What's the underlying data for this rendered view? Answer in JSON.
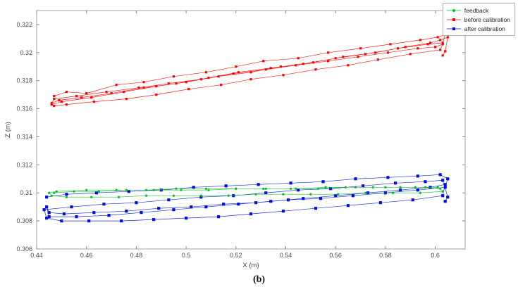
{
  "figure": {
    "caption": "(b)"
  },
  "chart_data": {
    "type": "line",
    "title": "",
    "xlabel": "X (m)",
    "ylabel": "Z (m)",
    "xlim": [
      0.44,
      0.612
    ],
    "ylim": [
      0.306,
      0.323
    ],
    "xticks": [
      0.44,
      0.46,
      0.48,
      0.5,
      0.52,
      0.54,
      0.56,
      0.58,
      0.6
    ],
    "yticks": [
      0.306,
      0.308,
      0.31,
      0.312,
      0.314,
      0.316,
      0.318,
      0.32,
      0.322
    ],
    "grid": false,
    "legend_position": "top-right",
    "series": [
      {
        "name": "feedback",
        "color": "#00bf26",
        "marker": "circle",
        "marker_size": 3.2,
        "points": [
          [
            0.447,
            0.31
          ],
          [
            0.455,
            0.3101
          ],
          [
            0.465,
            0.3101
          ],
          [
            0.476,
            0.3102
          ],
          [
            0.487,
            0.3102
          ],
          [
            0.498,
            0.3102
          ],
          [
            0.509,
            0.3102
          ],
          [
            0.52,
            0.3103
          ],
          [
            0.531,
            0.3103
          ],
          [
            0.542,
            0.3103
          ],
          [
            0.553,
            0.3103
          ],
          [
            0.564,
            0.3104
          ],
          [
            0.575,
            0.3104
          ],
          [
            0.586,
            0.3104
          ],
          [
            0.596,
            0.3104
          ],
          [
            0.602,
            0.3103
          ],
          [
            0.603,
            0.3101
          ],
          [
            0.594,
            0.31
          ],
          [
            0.583,
            0.31
          ],
          [
            0.572,
            0.31
          ],
          [
            0.561,
            0.3099
          ],
          [
            0.55,
            0.3099
          ],
          [
            0.539,
            0.3099
          ],
          [
            0.528,
            0.3099
          ],
          [
            0.517,
            0.3098
          ],
          [
            0.506,
            0.3098
          ],
          [
            0.495,
            0.3098
          ],
          [
            0.484,
            0.3098
          ],
          [
            0.473,
            0.3097
          ],
          [
            0.462,
            0.3097
          ],
          [
            0.452,
            0.3097
          ],
          [
            0.446,
            0.3098
          ],
          [
            0.445,
            0.31
          ],
          [
            0.448,
            0.3101
          ],
          [
            0.46,
            0.3102
          ],
          [
            0.472,
            0.3102
          ],
          [
            0.484,
            0.3102
          ],
          [
            0.496,
            0.3103
          ],
          [
            0.508,
            0.3103
          ],
          [
            0.52,
            0.3103
          ],
          [
            0.532,
            0.3103
          ],
          [
            0.544,
            0.3103
          ],
          [
            0.556,
            0.3104
          ],
          [
            0.568,
            0.3104
          ],
          [
            0.58,
            0.3104
          ],
          [
            0.592,
            0.3104
          ],
          [
            0.601,
            0.3104
          ]
        ]
      },
      {
        "name": "before calibration",
        "color": "#ff0000",
        "marker": "square",
        "marker_size": 3.2,
        "points": [
          [
            0.447,
            0.3169
          ],
          [
            0.452,
            0.3172
          ],
          [
            0.46,
            0.3171
          ],
          [
            0.472,
            0.3177
          ],
          [
            0.483,
            0.3179
          ],
          [
            0.495,
            0.3183
          ],
          [
            0.508,
            0.3186
          ],
          [
            0.52,
            0.319
          ],
          [
            0.531,
            0.3194
          ],
          [
            0.545,
            0.3196
          ],
          [
            0.557,
            0.32
          ],
          [
            0.57,
            0.3203
          ],
          [
            0.582,
            0.3206
          ],
          [
            0.594,
            0.3209
          ],
          [
            0.601,
            0.3211
          ],
          [
            0.604,
            0.3213
          ],
          [
            0.603,
            0.3207
          ],
          [
            0.597,
            0.3206
          ],
          [
            0.585,
            0.3203
          ],
          [
            0.572,
            0.3199
          ],
          [
            0.56,
            0.3196
          ],
          [
            0.547,
            0.3192
          ],
          [
            0.534,
            0.3189
          ],
          [
            0.521,
            0.3186
          ],
          [
            0.509,
            0.3182
          ],
          [
            0.496,
            0.3178
          ],
          [
            0.483,
            0.3175
          ],
          [
            0.47,
            0.3171
          ],
          [
            0.458,
            0.3168
          ],
          [
            0.449,
            0.3166
          ],
          [
            0.446,
            0.3164
          ],
          [
            0.447,
            0.3167
          ],
          [
            0.456,
            0.3169
          ],
          [
            0.468,
            0.3172
          ],
          [
            0.481,
            0.3175
          ],
          [
            0.493,
            0.3178
          ],
          [
            0.506,
            0.3181
          ],
          [
            0.519,
            0.3185
          ],
          [
            0.532,
            0.3188
          ],
          [
            0.544,
            0.3191
          ],
          [
            0.557,
            0.3194
          ],
          [
            0.569,
            0.3197
          ],
          [
            0.581,
            0.32
          ],
          [
            0.593,
            0.3203
          ],
          [
            0.6,
            0.3204
          ],
          [
            0.603,
            0.3206
          ],
          [
            0.602,
            0.3202
          ],
          [
            0.59,
            0.3199
          ],
          [
            0.577,
            0.3195
          ],
          [
            0.565,
            0.3191
          ],
          [
            0.552,
            0.3188
          ],
          [
            0.539,
            0.3184
          ],
          [
            0.526,
            0.3181
          ],
          [
            0.514,
            0.3177
          ],
          [
            0.501,
            0.3174
          ],
          [
            0.488,
            0.317
          ],
          [
            0.476,
            0.3167
          ],
          [
            0.463,
            0.3165
          ],
          [
            0.452,
            0.3163
          ],
          [
            0.447,
            0.3162
          ],
          [
            0.446,
            0.3163
          ],
          [
            0.45,
            0.3165
          ],
          [
            0.462,
            0.3168
          ],
          [
            0.475,
            0.3172
          ],
          [
            0.488,
            0.3176
          ],
          [
            0.5,
            0.3179
          ],
          [
            0.513,
            0.3183
          ],
          [
            0.526,
            0.3186
          ],
          [
            0.538,
            0.319
          ],
          [
            0.551,
            0.3193
          ],
          [
            0.563,
            0.3197
          ],
          [
            0.576,
            0.32
          ],
          [
            0.588,
            0.3204
          ],
          [
            0.598,
            0.3207
          ],
          [
            0.602,
            0.3209
          ],
          [
            0.605,
            0.3211
          ],
          [
            0.604,
            0.3201
          ],
          [
            0.603,
            0.3198
          ]
        ]
      },
      {
        "name": "after calibration",
        "color": "#0010dd",
        "marker": "square",
        "marker_size": 4.2,
        "points": [
          [
            0.444,
            0.3097
          ],
          [
            0.452,
            0.3099
          ],
          [
            0.464,
            0.31
          ],
          [
            0.477,
            0.3101
          ],
          [
            0.49,
            0.3102
          ],
          [
            0.503,
            0.3104
          ],
          [
            0.516,
            0.3105
          ],
          [
            0.529,
            0.3106
          ],
          [
            0.542,
            0.3107
          ],
          [
            0.555,
            0.3108
          ],
          [
            0.568,
            0.311
          ],
          [
            0.581,
            0.3111
          ],
          [
            0.593,
            0.3112
          ],
          [
            0.602,
            0.3113
          ],
          [
            0.605,
            0.311
          ],
          [
            0.604,
            0.3104
          ],
          [
            0.593,
            0.3102
          ],
          [
            0.58,
            0.31
          ],
          [
            0.567,
            0.3098
          ],
          [
            0.554,
            0.3096
          ],
          [
            0.541,
            0.3095
          ],
          [
            0.528,
            0.3093
          ],
          [
            0.515,
            0.3092
          ],
          [
            0.502,
            0.309
          ],
          [
            0.489,
            0.3089
          ],
          [
            0.476,
            0.3087
          ],
          [
            0.463,
            0.3086
          ],
          [
            0.451,
            0.3085
          ],
          [
            0.445,
            0.3086
          ],
          [
            0.444,
            0.309
          ],
          [
            0.445,
            0.3083
          ],
          [
            0.456,
            0.3083
          ],
          [
            0.469,
            0.3084
          ],
          [
            0.482,
            0.3086
          ],
          [
            0.495,
            0.3088
          ],
          [
            0.508,
            0.309
          ],
          [
            0.521,
            0.3092
          ],
          [
            0.534,
            0.3094
          ],
          [
            0.547,
            0.3096
          ],
          [
            0.56,
            0.3098
          ],
          [
            0.573,
            0.31
          ],
          [
            0.586,
            0.3102
          ],
          [
            0.598,
            0.3104
          ],
          [
            0.604,
            0.3106
          ],
          [
            0.603,
            0.3098
          ],
          [
            0.591,
            0.3095
          ],
          [
            0.578,
            0.3093
          ],
          [
            0.565,
            0.3091
          ],
          [
            0.552,
            0.3089
          ],
          [
            0.539,
            0.3087
          ],
          [
            0.526,
            0.3085
          ],
          [
            0.513,
            0.3083
          ],
          [
            0.5,
            0.3082
          ],
          [
            0.487,
            0.3081
          ],
          [
            0.474,
            0.308
          ],
          [
            0.461,
            0.308
          ],
          [
            0.45,
            0.308
          ],
          [
            0.444,
            0.3082
          ],
          [
            0.443,
            0.3088
          ],
          [
            0.454,
            0.309
          ],
          [
            0.467,
            0.3092
          ],
          [
            0.48,
            0.3093
          ],
          [
            0.493,
            0.3095
          ],
          [
            0.506,
            0.3097
          ],
          [
            0.519,
            0.3098
          ],
          [
            0.532,
            0.31
          ],
          [
            0.545,
            0.3102
          ],
          [
            0.558,
            0.3103
          ],
          [
            0.571,
            0.3105
          ],
          [
            0.584,
            0.3107
          ],
          [
            0.596,
            0.3108
          ],
          [
            0.603,
            0.3109
          ],
          [
            0.605,
            0.3097
          ],
          [
            0.604,
            0.3094
          ]
        ]
      }
    ]
  }
}
